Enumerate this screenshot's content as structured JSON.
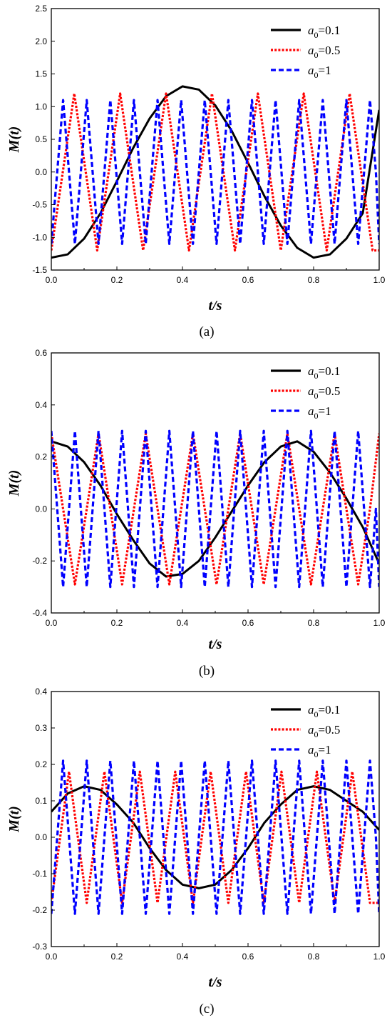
{
  "chart_data": [
    {
      "type": "line",
      "caption": "(a)",
      "xlabel": "t/s",
      "ylabel": "M(t)",
      "xlim": [
        0,
        1
      ],
      "ylim": [
        -1.5,
        2.5
      ],
      "xticks": [
        "0.0",
        "0.2",
        "0.4",
        "0.6",
        "0.8",
        "1.0"
      ],
      "yticks": [
        "-1.5",
        "-1.0",
        "-0.5",
        "0.0",
        "0.5",
        "1.0",
        "1.5",
        "2.0",
        "2.5"
      ],
      "legend_position": "top-right",
      "grid": false,
      "series": [
        {
          "name": "a0=0.1",
          "legend_prefix": "a",
          "legend_sub": "0",
          "legend_suffix": "=0.1",
          "color": "#000000",
          "dash": "solid",
          "x": [
            0,
            0.05,
            0.1,
            0.15,
            0.2,
            0.25,
            0.3,
            0.35,
            0.4,
            0.45,
            0.5,
            0.55,
            0.6,
            0.65,
            0.7,
            0.75,
            0.8,
            0.85,
            0.9,
            0.95,
            1.0
          ],
          "values": [
            -1.31,
            -1.26,
            -1.02,
            -0.63,
            -0.14,
            0.37,
            0.82,
            1.16,
            1.31,
            1.26,
            1.02,
            0.63,
            0.14,
            -0.37,
            -0.82,
            -1.16,
            -1.31,
            -1.26,
            -1.02,
            -0.63,
            0.95
          ]
        },
        {
          "name": "a0=0.5",
          "legend_prefix": "a",
          "legend_sub": "0",
          "legend_suffix": "=0.5",
          "color": "#ff0000",
          "dash": "dotted",
          "x": [
            0,
            0.035,
            0.07,
            0.105,
            0.14,
            0.175,
            0.21,
            0.245,
            0.28,
            0.315,
            0.35,
            0.385,
            0.42,
            0.455,
            0.49,
            0.525,
            0.56,
            0.595,
            0.63,
            0.665,
            0.7,
            0.735,
            0.77,
            0.805,
            0.84,
            0.875,
            0.91,
            0.945,
            0.98,
            1.0
          ],
          "values": [
            -1.2,
            0.0,
            1.2,
            0.0,
            -1.2,
            0.0,
            1.2,
            0.0,
            -1.2,
            0.0,
            1.2,
            0.0,
            -1.2,
            0.0,
            1.2,
            0.0,
            -1.2,
            0.0,
            1.2,
            0.0,
            -1.2,
            0.0,
            1.2,
            0.0,
            -1.2,
            0.0,
            1.2,
            0.0,
            -1.2,
            -1.2
          ]
        },
        {
          "name": "a0=1",
          "legend_prefix": "a",
          "legend_sub": "0",
          "legend_suffix": "=1",
          "color": "#0000ff",
          "dash": "dashed",
          "x": [
            0,
            0.018,
            0.036,
            0.054,
            0.072,
            0.09,
            0.108,
            0.126,
            0.144,
            0.162,
            0.18,
            0.198,
            0.216,
            0.234,
            0.252,
            0.27,
            0.288,
            0.306,
            0.324,
            0.342,
            0.36,
            0.378,
            0.396,
            0.414,
            0.432,
            0.45,
            0.468,
            0.486,
            0.504,
            0.522,
            0.54,
            0.558,
            0.576,
            0.594,
            0.612,
            0.63,
            0.648,
            0.666,
            0.684,
            0.702,
            0.72,
            0.738,
            0.756,
            0.774,
            0.792,
            0.81,
            0.828,
            0.846,
            0.864,
            0.882,
            0.9,
            0.918,
            0.936,
            0.954,
            0.972,
            0.99,
            1.0
          ],
          "values": [
            -1.1,
            0.0,
            1.1,
            0.0,
            -1.1,
            0.0,
            1.1,
            0.0,
            -1.1,
            0.0,
            1.1,
            0.0,
            -1.1,
            0.0,
            1.1,
            0.0,
            -1.1,
            0.0,
            1.1,
            0.0,
            -1.1,
            0.0,
            1.1,
            0.0,
            -1.1,
            0.0,
            1.1,
            0.0,
            -1.1,
            0.0,
            1.1,
            0.0,
            -1.1,
            0.0,
            1.1,
            0.0,
            -1.1,
            0.0,
            1.1,
            0.0,
            -1.1,
            0.0,
            1.1,
            0.0,
            -1.1,
            0.0,
            1.1,
            0.0,
            -1.1,
            0.0,
            1.1,
            0.0,
            -1.1,
            0.0,
            1.1,
            0.0,
            -1.1
          ]
        }
      ]
    },
    {
      "type": "line",
      "caption": "(b)",
      "xlabel": "t/s",
      "ylabel": "M(t)",
      "xlim": [
        0,
        1
      ],
      "ylim": [
        -0.4,
        0.6
      ],
      "xticks": [
        "0.0",
        "0.2",
        "0.4",
        "0.6",
        "0.8",
        "1.0"
      ],
      "yticks": [
        "-0.4",
        "-0.2",
        "0.0",
        "0.2",
        "0.4",
        "0.6"
      ],
      "legend_position": "top-right",
      "grid": false,
      "series": [
        {
          "name": "a0=0.1",
          "legend_prefix": "a",
          "legend_sub": "0",
          "legend_suffix": "=0.1",
          "color": "#000000",
          "dash": "solid",
          "x": [
            0,
            0.05,
            0.1,
            0.15,
            0.2,
            0.25,
            0.3,
            0.35,
            0.4,
            0.45,
            0.5,
            0.55,
            0.6,
            0.65,
            0.7,
            0.75,
            0.8,
            0.85,
            0.9,
            0.95,
            1.0
          ],
          "values": [
            0.26,
            0.24,
            0.18,
            0.09,
            -0.02,
            -0.12,
            -0.21,
            -0.26,
            -0.25,
            -0.2,
            -0.11,
            -0.01,
            0.09,
            0.18,
            0.24,
            0.26,
            0.22,
            0.14,
            0.04,
            -0.07,
            -0.21
          ]
        },
        {
          "name": "a0=0.5",
          "legend_prefix": "a",
          "legend_sub": "0",
          "legend_suffix": "=0.5",
          "color": "#ff0000",
          "dash": "dotted",
          "x": [
            0,
            0.036,
            0.072,
            0.108,
            0.144,
            0.18,
            0.216,
            0.252,
            0.288,
            0.324,
            0.36,
            0.396,
            0.432,
            0.468,
            0.504,
            0.54,
            0.576,
            0.612,
            0.648,
            0.684,
            0.72,
            0.756,
            0.792,
            0.828,
            0.864,
            0.9,
            0.936,
            0.972,
            1.0
          ],
          "values": [
            0.29,
            0.0,
            -0.29,
            0.0,
            0.29,
            0.0,
            -0.29,
            0.0,
            0.29,
            0.0,
            -0.29,
            0.0,
            0.29,
            0.0,
            -0.29,
            0.0,
            0.29,
            0.0,
            -0.29,
            0.0,
            0.29,
            0.0,
            -0.29,
            0.0,
            0.29,
            0.0,
            -0.29,
            0.0,
            0.29
          ]
        },
        {
          "name": "a0=1",
          "legend_prefix": "a",
          "legend_sub": "0",
          "legend_suffix": "=1",
          "color": "#0000ff",
          "dash": "dashed",
          "x": [
            0,
            0.018,
            0.036,
            0.054,
            0.072,
            0.09,
            0.108,
            0.126,
            0.144,
            0.162,
            0.18,
            0.198,
            0.216,
            0.234,
            0.252,
            0.27,
            0.288,
            0.306,
            0.324,
            0.342,
            0.36,
            0.378,
            0.396,
            0.414,
            0.432,
            0.45,
            0.468,
            0.486,
            0.504,
            0.522,
            0.54,
            0.558,
            0.576,
            0.594,
            0.612,
            0.63,
            0.648,
            0.666,
            0.684,
            0.702,
            0.72,
            0.738,
            0.756,
            0.774,
            0.792,
            0.81,
            0.828,
            0.846,
            0.864,
            0.882,
            0.9,
            0.918,
            0.936,
            0.954,
            0.972,
            0.99,
            1.0
          ],
          "values": [
            0.3,
            0.0,
            -0.3,
            0.0,
            0.3,
            0.0,
            -0.3,
            0.0,
            0.3,
            0.0,
            -0.3,
            0.0,
            0.3,
            0.0,
            -0.3,
            0.0,
            0.3,
            0.0,
            -0.3,
            0.0,
            0.3,
            0.0,
            -0.3,
            0.0,
            0.3,
            0.0,
            -0.3,
            0.0,
            0.3,
            0.0,
            -0.3,
            0.0,
            0.3,
            0.0,
            -0.3,
            0.0,
            0.3,
            0.0,
            -0.3,
            0.0,
            0.3,
            0.0,
            -0.3,
            0.0,
            0.3,
            0.0,
            -0.3,
            0.0,
            0.3,
            0.0,
            -0.3,
            0.0,
            0.3,
            0.0,
            -0.3,
            0.0,
            -0.3
          ]
        }
      ]
    },
    {
      "type": "line",
      "caption": "(c)",
      "xlabel": "t/s",
      "ylabel": "M(t)",
      "xlim": [
        0,
        1
      ],
      "ylim": [
        -0.3,
        0.4
      ],
      "xticks": [
        "0.0",
        "0.2",
        "0.4",
        "0.6",
        "0.8",
        "1.0"
      ],
      "yticks": [
        "-0.3",
        "-0.2",
        "-0.1",
        "0.0",
        "0.1",
        "0.2",
        "0.3",
        "0.4"
      ],
      "legend_position": "top-right",
      "grid": false,
      "series": [
        {
          "name": "a0=0.1",
          "legend_prefix": "a",
          "legend_sub": "0",
          "legend_suffix": "=0.1",
          "color": "#000000",
          "dash": "solid",
          "x": [
            0,
            0.05,
            0.1,
            0.15,
            0.2,
            0.25,
            0.3,
            0.35,
            0.4,
            0.45,
            0.5,
            0.55,
            0.6,
            0.65,
            0.7,
            0.75,
            0.8,
            0.85,
            0.9,
            0.95,
            1.0
          ],
          "values": [
            0.07,
            0.12,
            0.14,
            0.13,
            0.09,
            0.04,
            -0.03,
            -0.09,
            -0.13,
            -0.14,
            -0.13,
            -0.09,
            -0.03,
            0.04,
            0.09,
            0.13,
            0.14,
            0.13,
            0.1,
            0.07,
            0.02
          ]
        },
        {
          "name": "a0=0.5",
          "legend_prefix": "a",
          "legend_sub": "0",
          "legend_suffix": "=0.5",
          "color": "#ff0000",
          "dash": "dotted",
          "x": [
            0,
            0.027,
            0.054,
            0.081,
            0.108,
            0.135,
            0.162,
            0.189,
            0.216,
            0.243,
            0.27,
            0.297,
            0.324,
            0.351,
            0.378,
            0.405,
            0.432,
            0.459,
            0.486,
            0.513,
            0.54,
            0.567,
            0.594,
            0.621,
            0.648,
            0.675,
            0.702,
            0.729,
            0.756,
            0.783,
            0.81,
            0.837,
            0.864,
            0.891,
            0.918,
            0.945,
            0.972,
            1.0
          ],
          "values": [
            -0.18,
            0.0,
            0.18,
            0.0,
            -0.18,
            0.0,
            0.18,
            0.0,
            -0.18,
            0.0,
            0.18,
            0.0,
            -0.18,
            0.0,
            0.18,
            0.0,
            -0.18,
            0.0,
            0.18,
            0.0,
            -0.18,
            0.0,
            0.18,
            0.0,
            -0.18,
            0.0,
            0.18,
            0.0,
            -0.18,
            0.0,
            0.18,
            0.0,
            -0.18,
            0.0,
            0.18,
            0.0,
            -0.18,
            -0.18
          ]
        },
        {
          "name": "a0=1",
          "legend_prefix": "a",
          "legend_sub": "0",
          "legend_suffix": "=1",
          "color": "#0000ff",
          "dash": "dashed",
          "x": [
            0,
            0.018,
            0.036,
            0.054,
            0.072,
            0.09,
            0.108,
            0.126,
            0.144,
            0.162,
            0.18,
            0.198,
            0.216,
            0.234,
            0.252,
            0.27,
            0.288,
            0.306,
            0.324,
            0.342,
            0.36,
            0.378,
            0.396,
            0.414,
            0.432,
            0.45,
            0.468,
            0.486,
            0.504,
            0.522,
            0.54,
            0.558,
            0.576,
            0.594,
            0.612,
            0.63,
            0.648,
            0.666,
            0.684,
            0.702,
            0.72,
            0.738,
            0.756,
            0.774,
            0.792,
            0.81,
            0.828,
            0.846,
            0.864,
            0.882,
            0.9,
            0.918,
            0.936,
            0.954,
            0.972,
            0.99,
            1.0
          ],
          "values": [
            -0.21,
            0.0,
            0.21,
            0.0,
            -0.21,
            0.0,
            0.21,
            0.0,
            -0.21,
            0.0,
            0.21,
            0.0,
            -0.21,
            0.0,
            0.21,
            0.0,
            -0.21,
            0.0,
            0.21,
            0.0,
            -0.21,
            0.0,
            0.21,
            0.0,
            -0.21,
            0.0,
            0.21,
            0.0,
            -0.21,
            0.0,
            0.21,
            0.0,
            -0.21,
            0.0,
            0.21,
            0.0,
            -0.21,
            0.0,
            0.21,
            0.0,
            -0.21,
            0.0,
            0.21,
            0.0,
            -0.21,
            0.0,
            0.21,
            0.0,
            -0.21,
            0.0,
            0.21,
            0.0,
            -0.21,
            0.0,
            0.21,
            0.0,
            -0.21
          ]
        }
      ]
    }
  ]
}
